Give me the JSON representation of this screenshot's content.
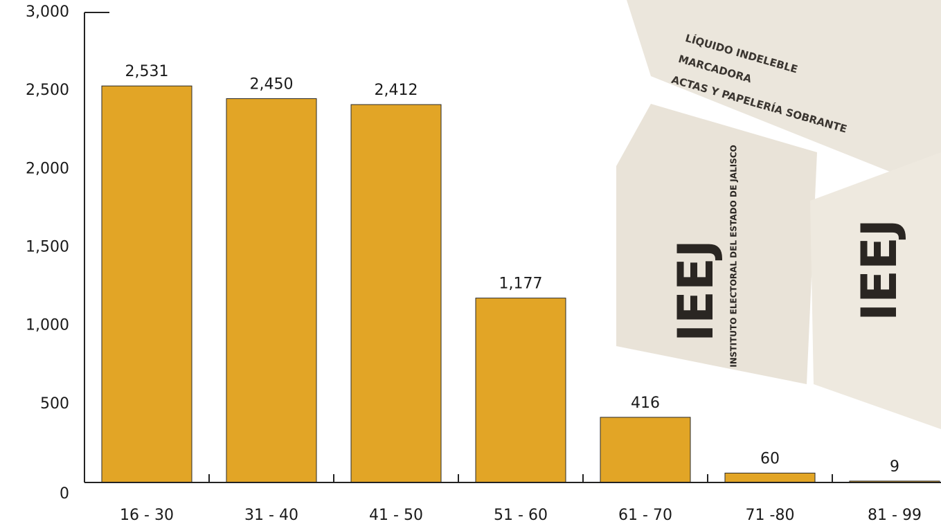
{
  "chart_data": {
    "type": "bar",
    "categories": [
      "16 - 30",
      "31 - 40",
      "41 - 50",
      "51 - 60",
      "61 - 70",
      "71 -80",
      "81 - 99"
    ],
    "values": [
      2531,
      2450,
      2412,
      1177,
      416,
      60,
      9
    ],
    "value_labels": [
      "2,531",
      "2,450",
      "2,412",
      "1,177",
      "416",
      "60",
      "9"
    ],
    "color": "#e2a526",
    "ylim": [
      0,
      3000
    ],
    "yticks": [
      0,
      500,
      {
        "value": 1000,
        "label": "1,000"
      },
      {
        "value": 1500,
        "label": "1,500"
      },
      {
        "value": 2000,
        "label": "2,000"
      },
      {
        "value": 2500,
        "label": "2,500"
      },
      {
        "value": 3000,
        "label": "3,000"
      }
    ],
    "annotations": [
      "LÍQUIDO INDELEBLE",
      "MARCADORA",
      "ACTAS Y PAPELERÍA SOBRANTE",
      "IEEJ",
      "INSTITUTO ELECTORAL DEL ESTADO DE JALISCO"
    ]
  }
}
